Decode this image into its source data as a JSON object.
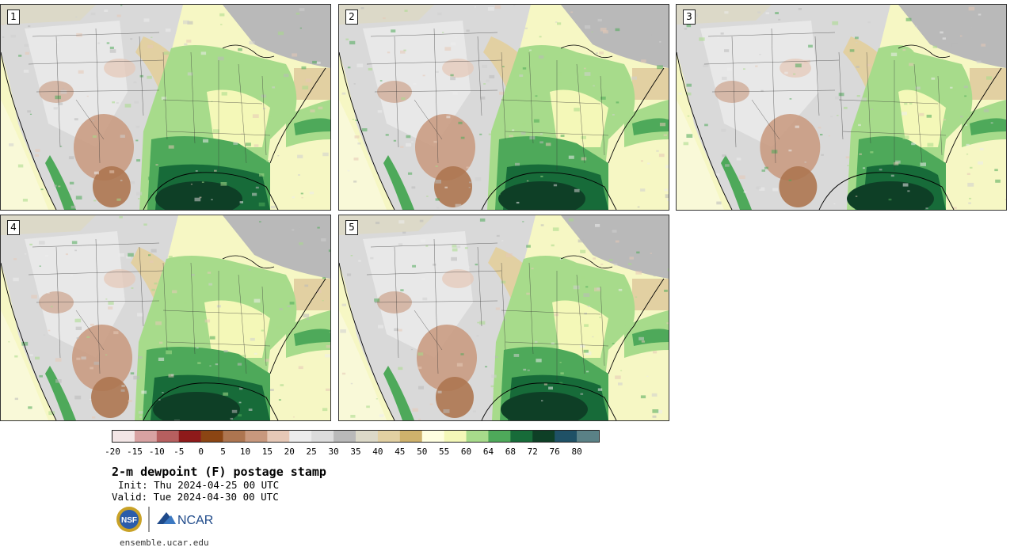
{
  "figure": {
    "title": "2-m dewpoint (F) postage stamp",
    "init_line": "Init: Thu 2024-04-25 00 UTC",
    "valid_line": "Valid: Tue 2024-04-30 00 UTC",
    "site": "ensemble.ucar.edu",
    "logo_text": "NCAR",
    "nsf_text": "NSF"
  },
  "panels": [
    {
      "label": "1",
      "moist_shift": 0
    },
    {
      "label": "2",
      "moist_shift": 12
    },
    {
      "label": "3",
      "moist_shift": 40
    },
    {
      "label": "4",
      "moist_shift": -6
    },
    {
      "label": "5",
      "moist_shift": 18
    }
  ],
  "colorbar": {
    "ticks": [
      "-20",
      "-15",
      "-10",
      "-5",
      "0",
      "5",
      "10",
      "15",
      "20",
      "25",
      "30",
      "35",
      "40",
      "45",
      "50",
      "55",
      "60",
      "64",
      "68",
      "72",
      "76",
      "80"
    ],
    "colors": [
      "#f3e6e6",
      "#d8a2a2",
      "#b65f5f",
      "#8e1a1a",
      "#8b4513",
      "#ad7550",
      "#c8987d",
      "#e6c8b6",
      "#ececec",
      "#dcdcdc",
      "#b9b9b9",
      "#dcd9c8",
      "#e2d0a2",
      "#cfb26c",
      "#ffffe0",
      "#f4f8b8",
      "#a7db8b",
      "#4ea95a",
      "#176b39",
      "#0e3f26",
      "#1f5166",
      "#5a8186"
    ]
  }
}
